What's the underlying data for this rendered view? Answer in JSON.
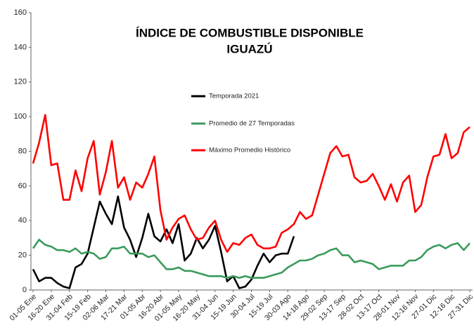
{
  "chart_data": {
    "type": "line",
    "title": "ÍNDICE DE COMBUSTIBLE DISPONIBLE",
    "subtitle": "IGUAZÚ",
    "categories": [
      "01-05 Ene",
      null,
      null,
      "16-20 Ene",
      null,
      null,
      "31-04 Feb",
      null,
      null,
      "15-19 Feb",
      null,
      null,
      "02-06 Mar",
      null,
      null,
      "17-21 Mar",
      null,
      null,
      "01-05 Abr",
      null,
      null,
      "16-20 Abr",
      null,
      null,
      "01-05 May",
      null,
      null,
      "16-20 May",
      null,
      null,
      "31-04 Jun",
      null,
      null,
      "15-19 Jun",
      null,
      null,
      "30-04 Jul",
      null,
      null,
      "15-19 Jul",
      null,
      null,
      "30-03 Ago",
      null,
      null,
      "14-18 Ago",
      null,
      null,
      "29-02 Sep",
      null,
      null,
      "13-17 Sep",
      null,
      null,
      "28-02 Oct",
      null,
      null,
      "13-17 Oct",
      null,
      null,
      "28-01 Nov",
      null,
      null,
      "12-16 Nov",
      null,
      null,
      "27-01 Dic",
      null,
      null,
      "12-16 Dic",
      null,
      null,
      "27-31 Dic"
    ],
    "series": [
      {
        "name": "Temporada 2021",
        "color": "#000000",
        "values": [
          12,
          5,
          7,
          7,
          4,
          2,
          1,
          13,
          15,
          21,
          36,
          51,
          44,
          38,
          54,
          36,
          29,
          19,
          30,
          44,
          31,
          28,
          35,
          27,
          38,
          17,
          21,
          30,
          24,
          29,
          37,
          22,
          5,
          8,
          1,
          2,
          6,
          14,
          21,
          16,
          20,
          21,
          21,
          31,
          null,
          null,
          null,
          null,
          null,
          null,
          null,
          null,
          null,
          null,
          null,
          null,
          null,
          null,
          null,
          null,
          null,
          null,
          null,
          null,
          null,
          null,
          null,
          null,
          null,
          null,
          null,
          null,
          null
        ]
      },
      {
        "name": "Promedio de 27 Temporadas",
        "color": "#3a9a5c",
        "values": [
          24,
          29,
          26,
          25,
          23,
          23,
          22,
          24,
          21,
          22,
          21,
          18,
          19,
          24,
          24,
          25,
          21,
          21,
          21,
          19,
          20,
          16,
          12,
          12,
          13,
          11,
          11,
          10,
          9,
          8,
          8,
          8,
          7,
          8,
          7,
          8,
          7,
          7,
          7,
          8,
          9,
          10,
          13,
          15,
          17,
          17,
          18,
          20,
          21,
          23,
          24,
          20,
          20,
          16,
          17,
          16,
          15,
          12,
          13,
          14,
          14,
          14,
          17,
          17,
          19,
          23,
          25,
          26,
          24,
          26,
          27,
          23,
          27
        ]
      },
      {
        "name": "Máximo Promedio Histórico",
        "color": "#ff0000",
        "values": [
          73,
          85,
          101,
          72,
          73,
          52,
          52,
          69,
          57,
          76,
          86,
          55,
          68,
          86,
          59,
          65,
          52,
          62,
          59,
          67,
          77,
          46,
          29,
          36,
          41,
          43,
          35,
          29,
          30,
          36,
          40,
          29,
          22,
          27,
          26,
          30,
          32,
          26,
          24,
          24,
          25,
          33,
          35,
          38,
          45,
          41,
          43,
          55,
          67,
          79,
          83,
          77,
          78,
          65,
          62,
          63,
          67,
          60,
          52,
          61,
          51,
          62,
          66,
          45,
          49,
          65,
          77,
          78,
          90,
          76,
          79,
          91,
          94
        ]
      }
    ],
    "ylim": [
      0,
      160
    ],
    "yticks": [
      0,
      20,
      40,
      60,
      80,
      100,
      120,
      140,
      160
    ],
    "grid": false
  }
}
